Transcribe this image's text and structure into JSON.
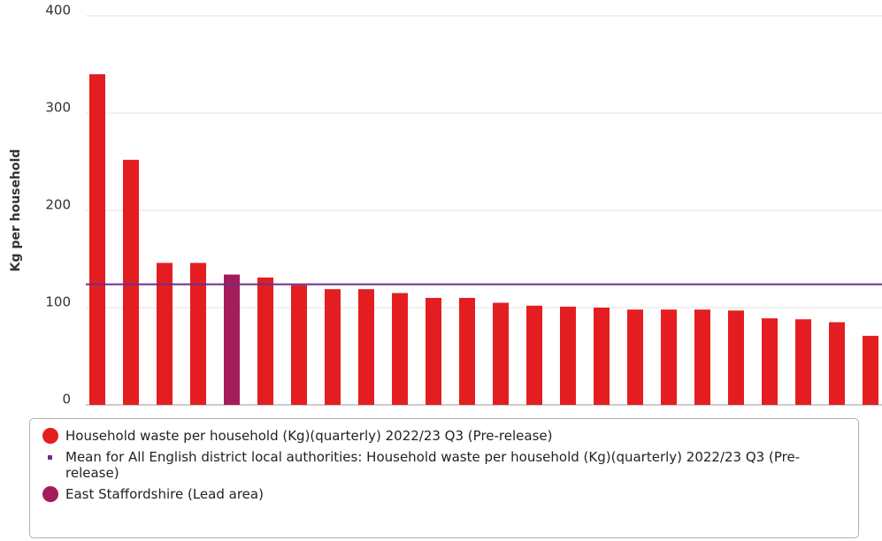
{
  "chart_data": {
    "type": "bar",
    "y_label": "Kg per household",
    "categories": [
      null,
      null,
      null,
      null,
      null,
      null,
      null,
      null,
      null,
      null,
      null,
      null,
      null,
      null,
      null,
      null,
      null,
      null,
      null,
      null,
      null,
      null,
      null,
      null
    ],
    "series": [
      {
        "name": "Household waste per household (Kg)(quarterly) 2022/23 Q3 (Pre-release)",
        "color": "#e41e20",
        "values": [
          340,
          252,
          146,
          146,
          134,
          131,
          123,
          119,
          119,
          115,
          110,
          110,
          105,
          102,
          101,
          100,
          98,
          98,
          98,
          97,
          89,
          88,
          85,
          71
        ]
      }
    ],
    "mean": {
      "name": "Mean for All English district local authorities: Household waste per household (Kg)(quarterly) 2022/23 Q3 (Pre-release)",
      "color": "#6b2d8f",
      "value": 124
    },
    "highlight": {
      "name": "East Staffordshire (Lead area)",
      "color": "#a51c5a",
      "index": 4
    },
    "ylim": [
      0,
      400
    ],
    "yticks": [
      0,
      100,
      200,
      300,
      400
    ],
    "grid": true
  }
}
